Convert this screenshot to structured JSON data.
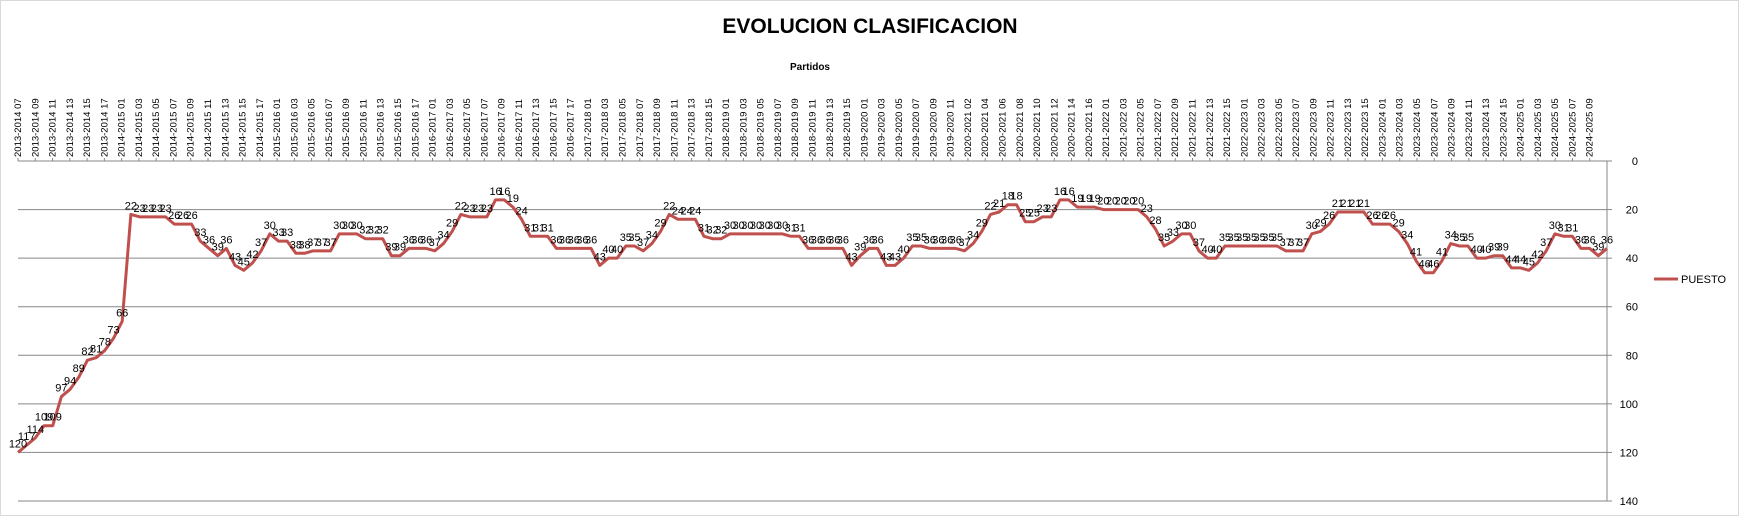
{
  "chart_data": {
    "type": "line",
    "title": "EVOLUCION CLASIFICACION",
    "xlabel": "Partidos",
    "ylabel": "",
    "ylim": [
      0,
      140
    ],
    "y_reversed": true,
    "y_ticks": [
      0,
      20,
      40,
      60,
      80,
      100,
      120,
      140
    ],
    "x_axis_position": "top",
    "grid": true,
    "legend_position": "right",
    "line_color": "#c0504d",
    "x_tick_labels": [
      "2013-2014 07",
      "2013-2014 09",
      "2013-2014 11",
      "2013-2014 13",
      "2013-2014 15",
      "2013-2014 17",
      "2014-2015 01",
      "2014-2015 03",
      "2014-2015 05",
      "2014-2015 07",
      "2014-2015 09",
      "2014-2015 11",
      "2014-2015 13",
      "2014-2015 15",
      "2014-2015 17",
      "2015-2016 01",
      "2015-2016 03",
      "2015-2016 05",
      "2015-2016 07",
      "2015-2016 09",
      "2015-2016 11",
      "2015-2016 13",
      "2015-2016 15",
      "2015-2016 17",
      "2016-2017 01",
      "2016-2017 03",
      "2016-2017 05",
      "2016-2017 07",
      "2016-2017 09",
      "2016-2017 11",
      "2016-2017 13",
      "2016-2017 15",
      "2016-2017 17",
      "2017-2018 01",
      "2017-2018 03",
      "2017-2018 05",
      "2017-2018 07",
      "2017-2018 09",
      "2017-2018 11",
      "2017-2018 13",
      "2017-2018 15",
      "2018-2019 01",
      "2018-2019 03",
      "2018-2019 05",
      "2018-2019 07",
      "2018-2019 09",
      "2018-2019 11",
      "2018-2019 13",
      "2018-2019 15",
      "2019-2020 01",
      "2019-2020 03",
      "2019-2020 05",
      "2019-2020 07",
      "2019-2020 09",
      "2019-2020 11",
      "2020-2021 02",
      "2020-2021 04",
      "2020-2021 06",
      "2020-2021 08",
      "2020-2021 10",
      "2020-2021 12",
      "2020-2021 14",
      "2020-2021 16",
      "2021-2022 01",
      "2021-2022 03",
      "2021-2022 05",
      "2021-2022 07",
      "2021-2022 09",
      "2021-2022 11",
      "2021-2022 13",
      "2021-2022 15",
      "2022-2023 01",
      "2022-2023 03",
      "2022-2023 05",
      "2022-2023 07",
      "2022-2023 09",
      "2022-2023 11",
      "2022-2023 13",
      "2022-2023 15",
      "2023-2024 01",
      "2023-2024 03",
      "2023-2024 05",
      "2023-2024 07",
      "2023-2024 09",
      "2023-2024 11",
      "2023-2024 13",
      "2023-2024 15",
      "2024-2025 01",
      "2024-2025 03",
      "2024-2025 05",
      "2024-2025 07",
      "2024-2025 09"
    ],
    "series": [
      {
        "name": "PUESTO",
        "values": [
          120,
          117,
          114,
          109,
          109,
          97,
          94,
          89,
          82,
          81,
          78,
          73,
          66,
          22,
          23,
          23,
          23,
          23,
          26,
          26,
          26,
          33,
          36,
          39,
          36,
          43,
          45,
          42,
          37,
          30,
          33,
          33,
          38,
          38,
          37,
          37,
          37,
          30,
          30,
          30,
          32,
          32,
          32,
          39,
          39,
          36,
          36,
          36,
          37,
          34,
          29,
          22,
          23,
          23,
          23,
          16,
          16,
          19,
          24,
          31,
          31,
          31,
          36,
          36,
          36,
          36,
          36,
          43,
          40,
          40,
          35,
          35,
          37,
          34,
          29,
          22,
          24,
          24,
          24,
          31,
          32,
          32,
          30,
          30,
          30,
          30,
          30,
          30,
          30,
          31,
          31,
          36,
          36,
          36,
          36,
          36,
          43,
          39,
          36,
          36,
          43,
          43,
          40,
          35,
          35,
          36,
          36,
          36,
          36,
          37,
          34,
          29,
          22,
          21,
          18,
          18,
          25,
          25,
          23,
          23,
          16,
          16,
          19,
          19,
          19,
          20,
          20,
          20,
          20,
          20,
          23,
          28,
          35,
          33,
          30,
          30,
          37,
          40,
          40,
          35,
          35,
          35,
          35,
          35,
          35,
          35,
          37,
          37,
          37,
          30,
          29,
          26,
          21,
          21,
          21,
          21,
          26,
          26,
          26,
          29,
          34,
          41,
          46,
          46,
          41,
          34,
          35,
          35,
          40,
          40,
          39,
          39,
          44,
          44,
          45,
          42,
          37,
          30,
          31,
          31,
          36,
          36,
          39,
          36
        ]
      }
    ]
  }
}
